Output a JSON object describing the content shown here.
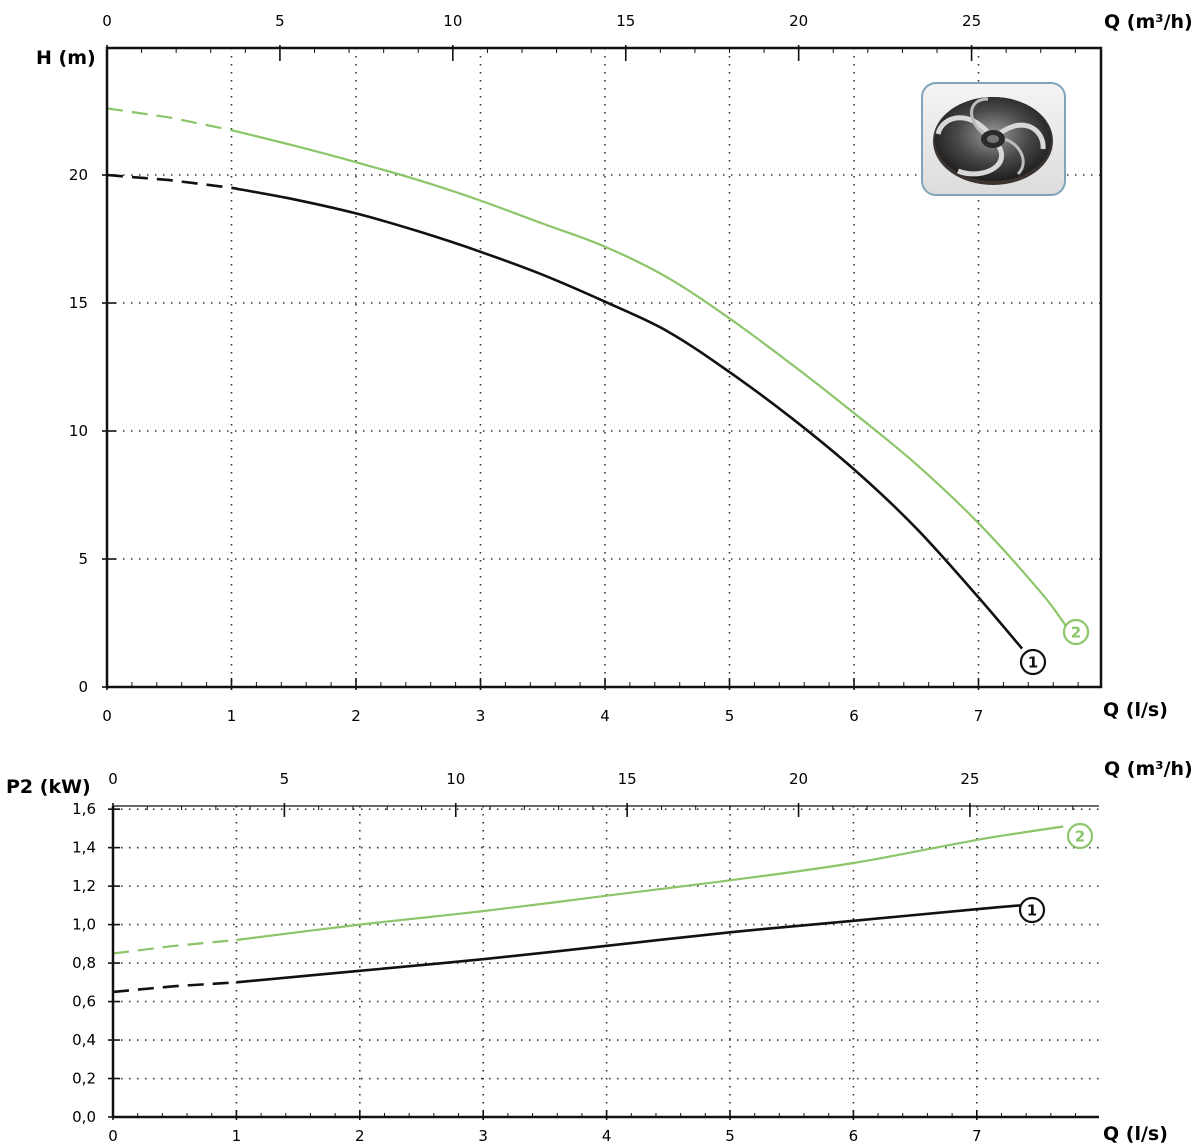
{
  "colors": {
    "curve_1": "#111111",
    "curve_2": "#8cc56a",
    "grid": "#333333",
    "frame": "#111111"
  },
  "images": [
    {
      "name": "impeller-photo",
      "description_icon": "pump-impeller-icon"
    }
  ],
  "chart_data": [
    {
      "type": "line",
      "title": "",
      "ylabel": "H (m)",
      "xlabel": "Q (l/s)",
      "x2label": "Q (m³/h)",
      "xlim": [
        0,
        7.9
      ],
      "ylim": [
        0,
        25
      ],
      "x_ticks": [
        "0",
        "1",
        "2",
        "3",
        "4",
        "5",
        "6",
        "7"
      ],
      "x2_ticks": [
        "0",
        "5",
        "10",
        "15",
        "20",
        "25"
      ],
      "y_ticks": [
        "0",
        "5",
        "10",
        "15",
        "20"
      ],
      "grid": true,
      "series": [
        {
          "name": "1",
          "x": [
            0,
            0.5,
            1.0,
            1.5,
            2.0,
            2.5,
            3.0,
            3.5,
            4.0,
            4.5,
            5.0,
            5.5,
            6.0,
            6.5,
            7.0,
            7.35
          ],
          "y": [
            20.0,
            19.8,
            19.5,
            19.05,
            18.5,
            17.8,
            17.0,
            16.1,
            15.05,
            13.9,
            12.3,
            10.5,
            8.5,
            6.2,
            3.5,
            1.5
          ],
          "dashed_until_x": 1.0
        },
        {
          "name": "2",
          "x": [
            0,
            0.5,
            1.0,
            1.5,
            2.0,
            2.5,
            3.0,
            3.5,
            4.0,
            4.5,
            5.0,
            5.5,
            6.0,
            6.5,
            7.0,
            7.5,
            7.7
          ],
          "y": [
            22.6,
            22.25,
            21.75,
            21.15,
            20.5,
            19.8,
            19.0,
            18.1,
            17.2,
            16.0,
            14.4,
            12.6,
            10.7,
            8.7,
            6.4,
            3.7,
            2.4
          ],
          "dashed_until_x": 1.0
        }
      ]
    },
    {
      "type": "line",
      "title": "",
      "ylabel": "P2 (kW)",
      "xlabel": "Q (l/s)",
      "x2label": "Q (m³/h)",
      "xlim": [
        0,
        7.9
      ],
      "ylim": [
        0,
        1.6
      ],
      "x_ticks": [
        "0",
        "1",
        "2",
        "3",
        "4",
        "5",
        "6",
        "7"
      ],
      "x2_ticks": [
        "0",
        "5",
        "10",
        "15",
        "20",
        "25"
      ],
      "y_ticks": [
        "0,0",
        "0,2",
        "0,4",
        "0,6",
        "0,8",
        "1,0",
        "1,2",
        "1,4",
        "1,6"
      ],
      "grid": true,
      "series": [
        {
          "name": "1",
          "x": [
            0,
            0.5,
            1.0,
            2.0,
            3.0,
            4.0,
            5.0,
            6.0,
            7.0,
            7.35
          ],
          "y": [
            0.65,
            0.68,
            0.7,
            0.76,
            0.82,
            0.89,
            0.96,
            1.02,
            1.08,
            1.1
          ],
          "dashed_until_x": 1.0
        },
        {
          "name": "2",
          "x": [
            0,
            0.5,
            1.0,
            2.0,
            3.0,
            4.0,
            5.0,
            6.0,
            7.0,
            7.7
          ],
          "y": [
            0.85,
            0.89,
            0.92,
            1.0,
            1.07,
            1.15,
            1.23,
            1.32,
            1.44,
            1.51
          ],
          "dashed_until_x": 1.0
        }
      ]
    }
  ]
}
